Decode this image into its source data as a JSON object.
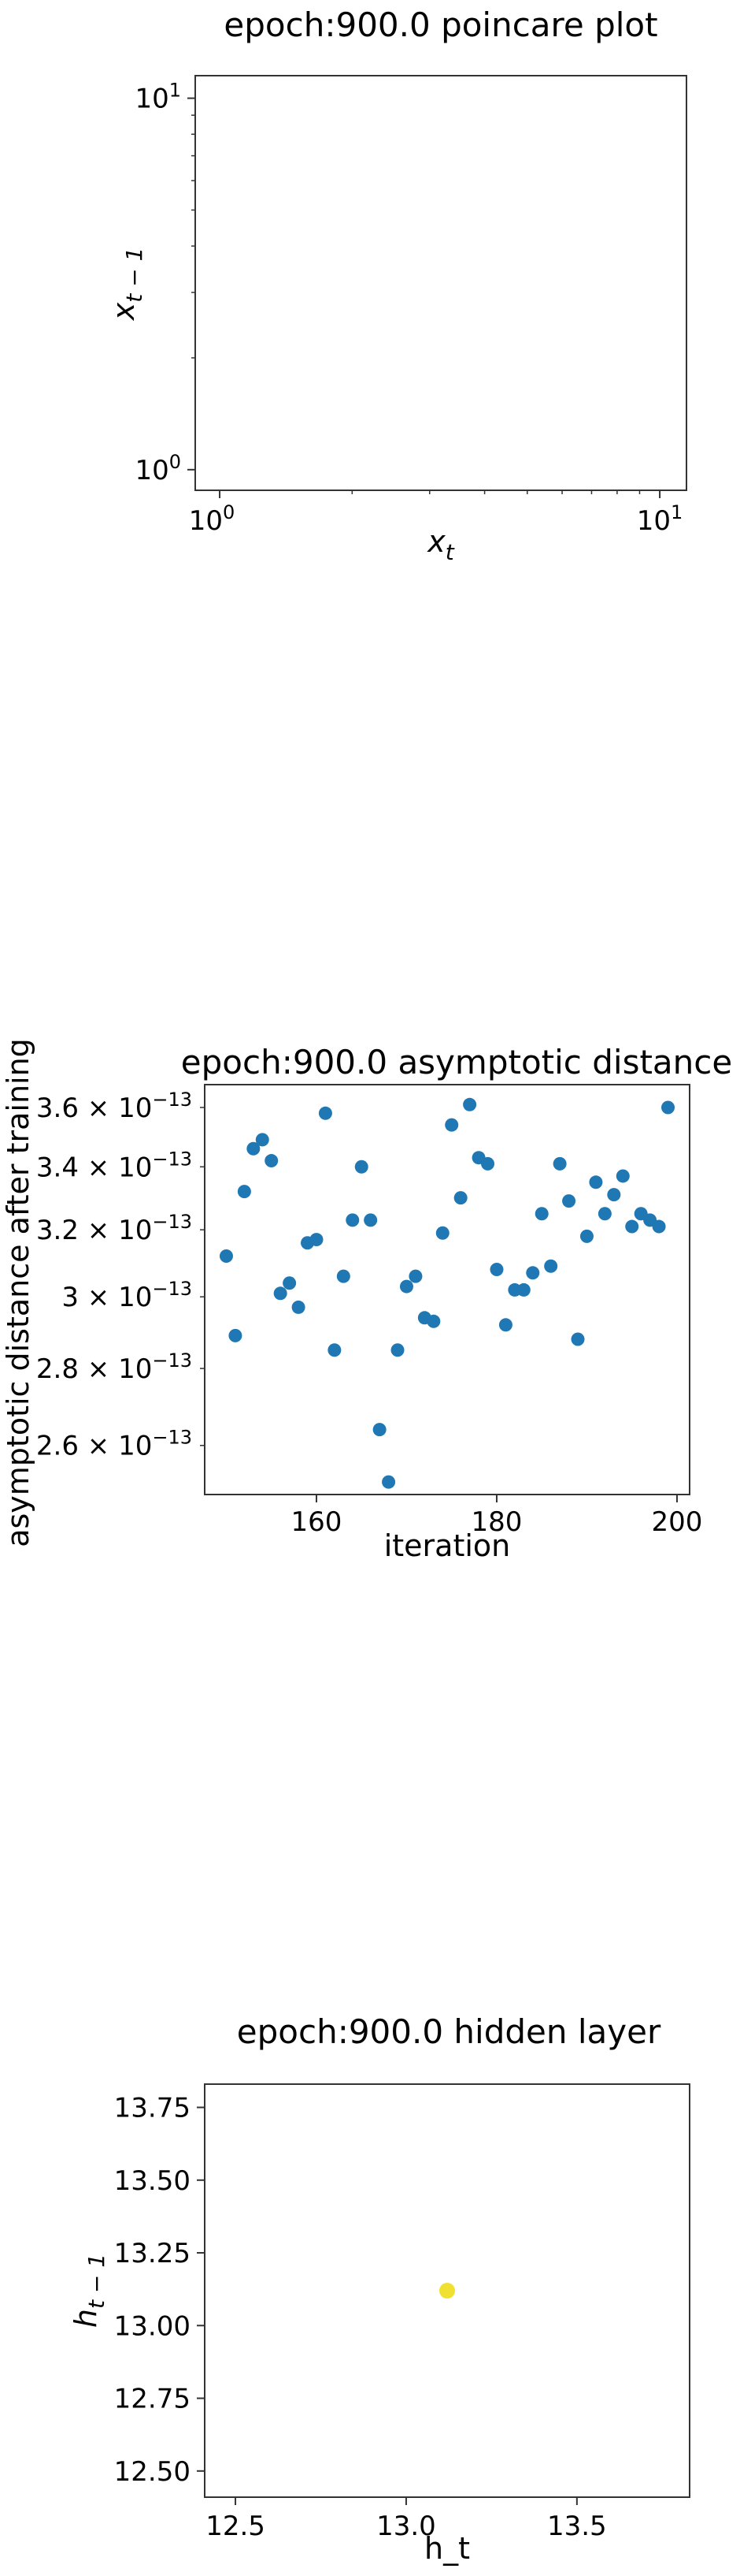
{
  "chart_data": [
    {
      "type": "scatter",
      "title": "epoch:900.0 poincare plot",
      "xlabel": "x_t",
      "ylabel": "x_{t-1}",
      "xscale": "log",
      "yscale": "log",
      "xlim": [
        0.88,
        11.5
      ],
      "ylim": [
        0.88,
        11.5
      ],
      "x_ticks": [
        "10^0",
        "10^1"
      ],
      "y_ticks": [
        "10^0",
        "10^1"
      ],
      "points": []
    },
    {
      "type": "scatter",
      "title": "epoch:900.0 asymptotic distance",
      "xlabel": "iteration",
      "ylabel": "asymptotic distance after training",
      "yscale": "log",
      "xlim": [
        147.6,
        201.4
      ],
      "ylim": [
        2.48e-13,
        3.68e-13
      ],
      "x_ticks": [
        "160",
        "180",
        "200"
      ],
      "y_ticks": [
        "2.6 × 10^-13",
        "2.8 × 10^-13",
        "3 × 10^-13",
        "3.2 × 10^-13",
        "3.4 × 10^-13",
        "3.6 × 10^-13"
      ],
      "color": "#1f77b4",
      "x": [
        150,
        151,
        152,
        153,
        154,
        155,
        156,
        157,
        158,
        159,
        160,
        161,
        162,
        163,
        164,
        165,
        166,
        167,
        168,
        169,
        170,
        171,
        172,
        173,
        174,
        175,
        176,
        177,
        178,
        179,
        180,
        181,
        182,
        183,
        184,
        185,
        186,
        187,
        188,
        189,
        190,
        191,
        192,
        193,
        194,
        195,
        196,
        197,
        198,
        199
      ],
      "y": [
        3.12e-13,
        2.89e-13,
        3.32e-13,
        3.46e-13,
        3.49e-13,
        3.42e-13,
        3.01e-13,
        3.04e-13,
        2.97e-13,
        3.16e-13,
        3.17e-13,
        3.58e-13,
        2.85e-13,
        3.06e-13,
        3.23e-13,
        3.4e-13,
        3.23e-13,
        2.64e-13,
        2.51e-13,
        2.85e-13,
        3.03e-13,
        3.06e-13,
        2.94e-13,
        2.93e-13,
        3.19e-13,
        3.54e-13,
        3.3e-13,
        3.61e-13,
        3.43e-13,
        3.41e-13,
        3.08e-13,
        2.92e-13,
        3.02e-13,
        3.02e-13,
        3.07e-13,
        3.25e-13,
        3.09e-13,
        3.41e-13,
        3.29e-13,
        2.88e-13,
        3.18e-13,
        3.35e-13,
        3.25e-13,
        3.31e-13,
        3.37e-13,
        3.21e-13,
        3.25e-13,
        3.23e-13,
        3.21e-13,
        3.6e-13
      ]
    },
    {
      "type": "scatter",
      "title": "epoch:900.0 hidden layer",
      "xlabel": "h_t",
      "ylabel": "h_{t-1}",
      "xlim": [
        12.41,
        13.83
      ],
      "ylim": [
        12.41,
        13.83
      ],
      "x_ticks": [
        "12.5",
        "13.0",
        "13.5"
      ],
      "y_ticks": [
        "12.50",
        "12.75",
        "13.00",
        "13.25",
        "13.50",
        "13.75"
      ],
      "color": "#f0e130",
      "x": [
        13.12
      ],
      "y": [
        13.12
      ]
    }
  ]
}
